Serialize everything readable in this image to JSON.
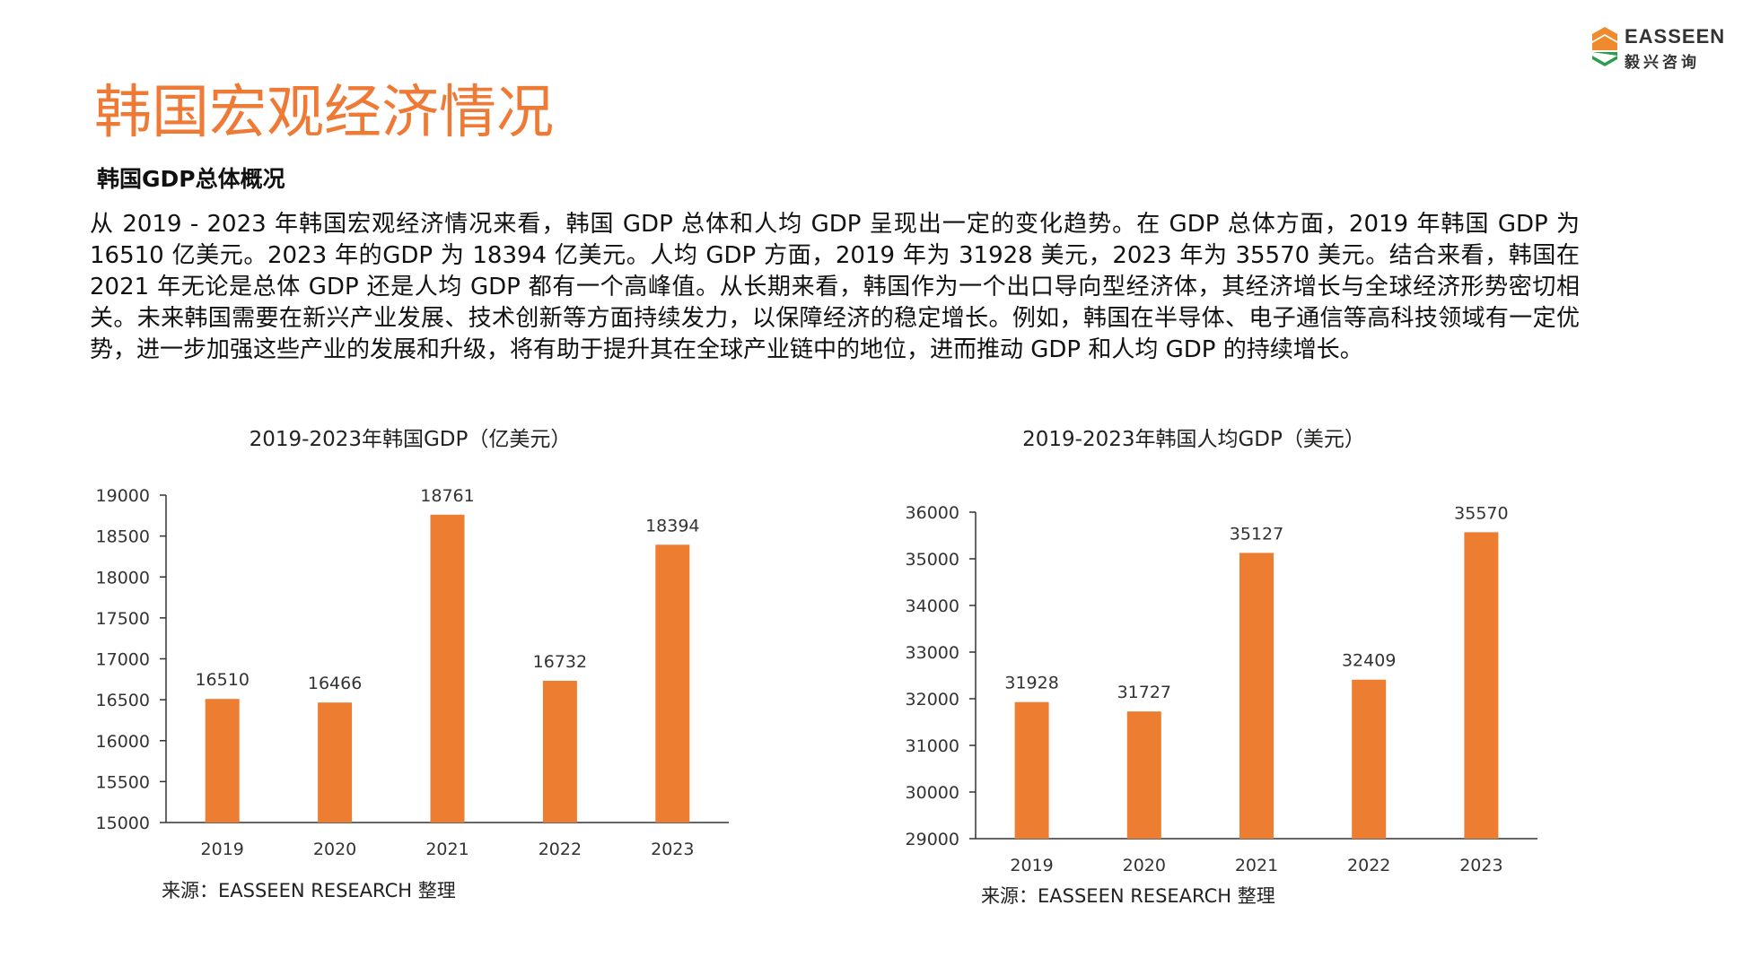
{
  "logo": {
    "name": "EASSEEN",
    "chinese": "毅兴咨询",
    "colors": {
      "orange": "#F08A2E",
      "green": "#2E9C4E"
    }
  },
  "title": "韩国宏观经济情况",
  "section_title": "韩国GDP总体概况",
  "body_text": "从 2019 - 2023 年韩国宏观经济情况来看，韩国 GDP 总体和人均 GDP 呈现出一定的变化趋势。在 GDP 总体方面，2019 年韩国 GDP 为 16510 亿美元。2023 年的GDP 为 18394 亿美元。人均 GDP 方面，2019 年为 31928 美元，2023 年为 35570 美元。结合来看，韩国在 2021 年无论是总体 GDP 还是人均 GDP 都有一个高峰值。从长期来看，韩国作为一个出口导向型经济体，其经济增长与全球经济形势密切相关。未来韩国需要在新兴产业发展、技术创新等方面持续发力，以保障经济的稳定增长。例如，韩国在半导体、电子通信等高科技领域有一定优势，进一步加强这些产业的发展和升级，将有助于提升其在全球产业链中的地位，进而推动 GDP 和人均 GDP 的持续增长。",
  "colors": {
    "accent": "#EE7A35",
    "bar": "#ED7D31",
    "axis": "#333333"
  },
  "chart_data": [
    {
      "type": "bar",
      "title": "2019-2023年韩国GDP（亿美元）",
      "categories": [
        "2019",
        "2020",
        "2021",
        "2022",
        "2023"
      ],
      "values": [
        16510,
        16466,
        18761,
        16732,
        18394
      ],
      "ylim": [
        15000,
        19000
      ],
      "yticks": [
        15000,
        15500,
        16000,
        16500,
        17000,
        17500,
        18000,
        18500,
        19000
      ],
      "grid": false,
      "data_labels": true,
      "source": "来源：EASSEEN RESEARCH 整理"
    },
    {
      "type": "bar",
      "title": "2019-2023年韩国人均GDP（美元）",
      "categories": [
        "2019",
        "2020",
        "2021",
        "2022",
        "2023"
      ],
      "values": [
        31928,
        31727,
        35127,
        32409,
        35570
      ],
      "ylim": [
        29000,
        36000
      ],
      "yticks": [
        29000,
        30000,
        31000,
        32000,
        33000,
        34000,
        35000,
        36000
      ],
      "grid": false,
      "data_labels": true,
      "source": "来源：EASSEEN RESEARCH 整理"
    }
  ]
}
